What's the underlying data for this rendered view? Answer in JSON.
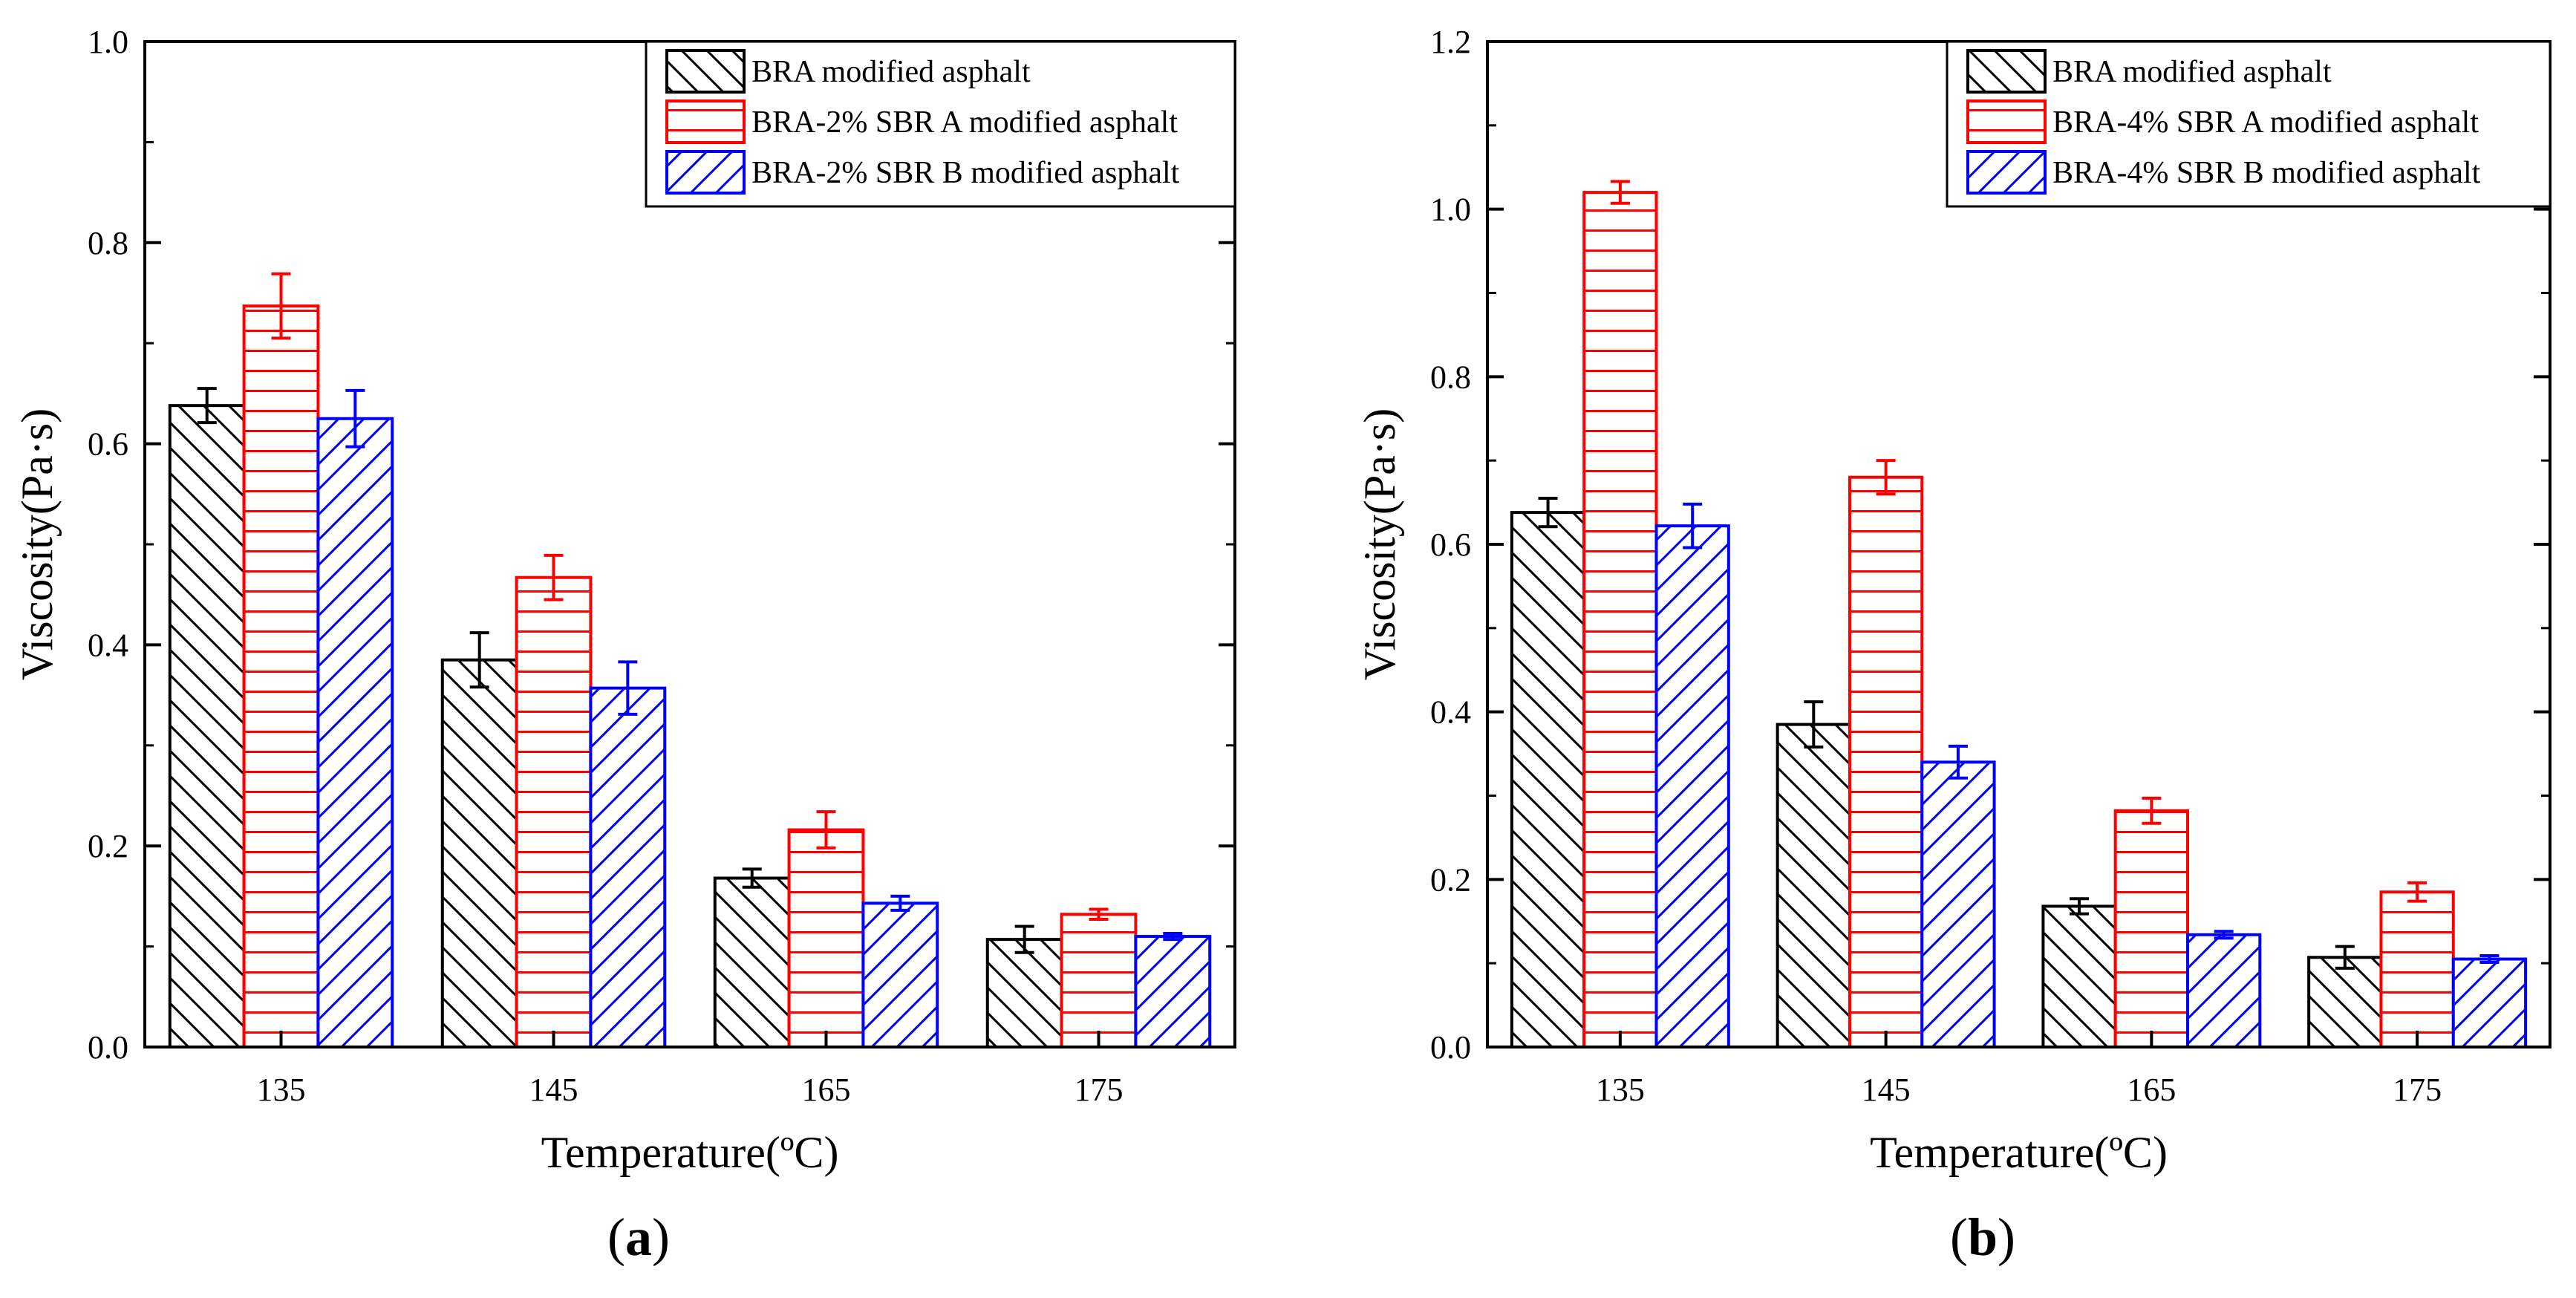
{
  "colors": {
    "series": [
      "#000000",
      "#ff0000",
      "#0000ff"
    ],
    "axis": "#000000"
  },
  "panels": [
    {
      "label_open": "(",
      "label_letter": "a",
      "label_close": ")"
    },
    {
      "label_open": "(",
      "label_letter": "b",
      "label_close": ")"
    }
  ],
  "chart_data": [
    {
      "type": "bar",
      "categories": [
        "135",
        "145",
        "165",
        "175"
      ],
      "xlabel": "Temperature(ºC)",
      "ylabel": "Viscosity(Pa·s)",
      "ylim": [
        0,
        1.0
      ],
      "yticks": [
        0.0,
        0.2,
        0.4,
        0.6,
        0.8,
        1.0
      ],
      "ytick_labels": [
        "0.0",
        "0.2",
        "0.4",
        "0.6",
        "0.8",
        "1.0"
      ],
      "legend_position": "top-right",
      "series": [
        {
          "name": "BRA modified asphalt",
          "pattern": "diag-back",
          "values": [
            0.638,
            0.385,
            0.168,
            0.107
          ],
          "errors": [
            0.017,
            0.027,
            0.009,
            0.013
          ]
        },
        {
          "name": "BRA-2% SBR A modified asphalt",
          "pattern": "horizontal",
          "values": [
            0.737,
            0.467,
            0.216,
            0.132
          ],
          "errors": [
            0.032,
            0.022,
            0.018,
            0.005
          ]
        },
        {
          "name": "BRA-2% SBR B modified asphalt",
          "pattern": "diag-fwd",
          "values": [
            0.625,
            0.357,
            0.143,
            0.11
          ],
          "errors": [
            0.028,
            0.026,
            0.007,
            0.003
          ]
        }
      ]
    },
    {
      "type": "bar",
      "categories": [
        "135",
        "145",
        "165",
        "175"
      ],
      "xlabel": "Temperature(ºC)",
      "ylabel": "Viscosity(Pa·s)",
      "ylim": [
        0,
        1.2
      ],
      "yticks": [
        0.0,
        0.2,
        0.4,
        0.6,
        0.8,
        1.0,
        1.2
      ],
      "ytick_labels": [
        "0.0",
        "0.2",
        "0.4",
        "0.6",
        "0.8",
        "1.0",
        "1.2"
      ],
      "legend_position": "top-right",
      "series": [
        {
          "name": "BRA modified asphalt",
          "pattern": "diag-back",
          "values": [
            0.638,
            0.385,
            0.168,
            0.107
          ],
          "errors": [
            0.017,
            0.027,
            0.009,
            0.013
          ]
        },
        {
          "name": "BRA-4% SBR A modified asphalt",
          "pattern": "horizontal",
          "values": [
            1.02,
            0.68,
            0.282,
            0.185
          ],
          "errors": [
            0.013,
            0.02,
            0.015,
            0.011
          ]
        },
        {
          "name": "BRA-4% SBR B modified asphalt",
          "pattern": "diag-fwd",
          "values": [
            0.622,
            0.34,
            0.134,
            0.105
          ],
          "errors": [
            0.026,
            0.019,
            0.004,
            0.004
          ]
        }
      ]
    }
  ]
}
